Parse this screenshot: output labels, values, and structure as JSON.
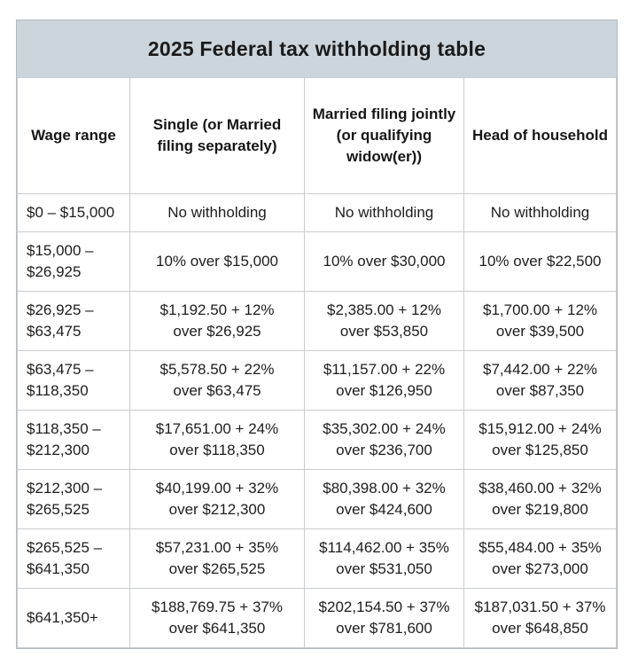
{
  "title": "2025 Federal tax withholding table",
  "colors": {
    "title_background": "#ccd5db",
    "grid_border": "#c9cccf",
    "outer_border": "#b3b9bd",
    "text": "#1d1d1d",
    "page_background": "#ffffff"
  },
  "chart_data": {
    "type": "table",
    "title": "2025 Federal tax withholding table",
    "columns": [
      "Wage range",
      "Single (or Married\nfiling separately)",
      "Married filing jointly\n(or qualifying\nwidow(er))",
      "Head of household"
    ],
    "rows": [
      [
        "$0 – $15,000",
        "No withholding",
        "No withholding",
        "No withholding"
      ],
      [
        "$15,000 –\n$26,925",
        "10% over $15,000",
        "10% over $30,000",
        "10% over $22,500"
      ],
      [
        "$26,925 –\n$63,475",
        "$1,192.50 + 12%\nover $26,925",
        "$2,385.00 + 12%\nover $53,850",
        "$1,700.00 + 12%\nover $39,500"
      ],
      [
        "$63,475 –\n$118,350",
        "$5,578.50 + 22%\nover $63,475",
        "$11,157.00 + 22%\nover $126,950",
        "$7,442.00 + 22%\nover $87,350"
      ],
      [
        "$118,350 –\n$212,300",
        "$17,651.00 + 24%\nover $118,350",
        "$35,302.00 + 24%\nover $236,700",
        "$15,912.00 + 24%\nover $125,850"
      ],
      [
        "$212,300 –\n$265,525",
        "$40,199.00 + 32%\nover $212,300",
        "$80,398.00 + 32%\nover $424,600",
        "$38,460.00 + 32%\nover $219,800"
      ],
      [
        "$265,525 –\n$641,350",
        "$57,231.00 + 35%\nover $265,525",
        "$114,462.00 + 35%\nover $531,050",
        "$55,484.00 + 35%\nover $273,000"
      ],
      [
        "$641,350+",
        "$188,769.75 + 37%\nover $641,350",
        "$202,154.50 + 37%\nover $781,600",
        "$187,031.50 + 37%\nover $648,850"
      ]
    ]
  }
}
